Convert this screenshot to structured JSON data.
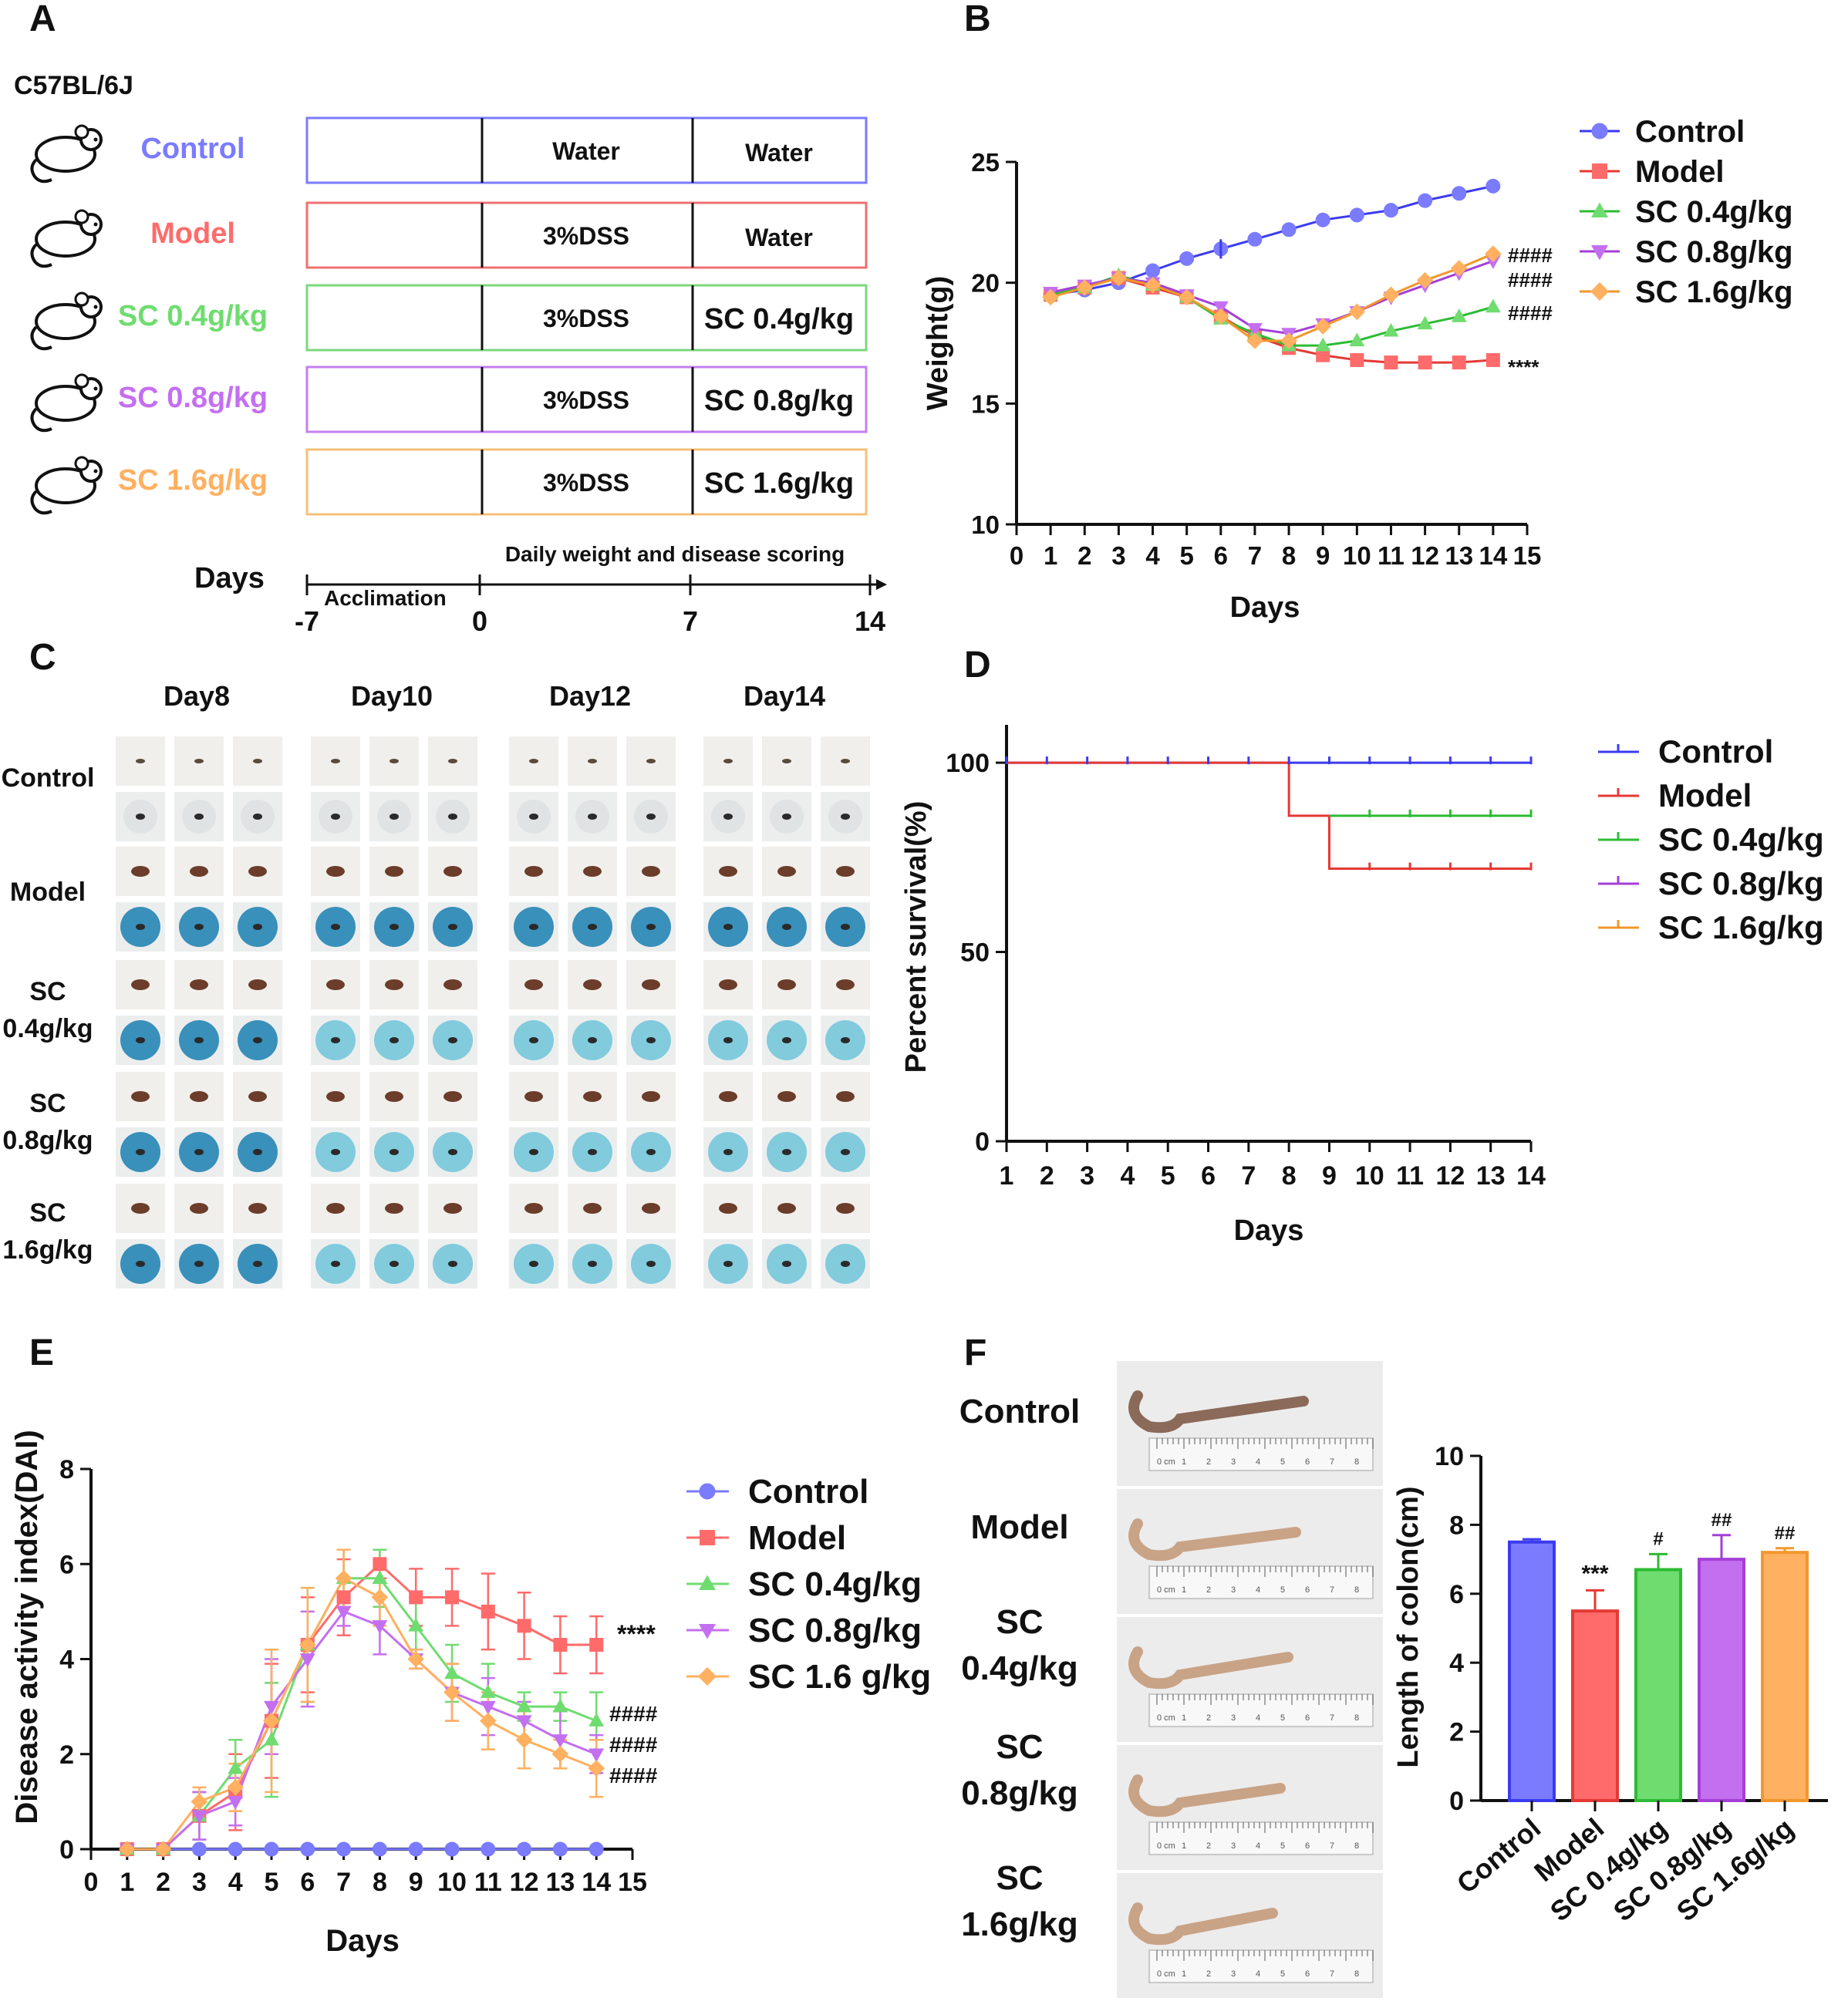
{
  "colors": {
    "control": "#3b3bf0",
    "model": "#e53935",
    "sc04": "#2dbb34",
    "sc08": "#a43fd6",
    "sc16": "#f2972c",
    "control_light": "#7b7bff",
    "model_light": "#ff6b6b",
    "sc04_light": "#6fdc6f",
    "sc08_light": "#c46ff0",
    "sc16_light": "#ffb060"
  },
  "panel_letters": [
    "A",
    "B",
    "C",
    "D",
    "E",
    "F"
  ],
  "panelA": {
    "strain": "C57BL/6J",
    "groups": [
      {
        "label": "Control",
        "mid": "Water",
        "right": "Water"
      },
      {
        "label": "Model",
        "mid": "3%DSS",
        "right": "Water"
      },
      {
        "label": "SC 0.4g/kg",
        "mid": "3%DSS",
        "right": "SC 0.4g/kg"
      },
      {
        "label": "SC 0.8g/kg",
        "mid": "3%DSS",
        "right": "SC 0.8g/kg"
      },
      {
        "label": "SC 1.6g/kg",
        "mid": "3%DSS",
        "right": "SC 1.6g/kg"
      }
    ],
    "days_label": "Days",
    "acclimation": "Acclimation",
    "scoring": "Daily weight and disease scoring",
    "ticks": [
      "-7",
      "0",
      "7",
      "14"
    ]
  },
  "chart_data": [
    {
      "id": "B",
      "type": "line",
      "title": "",
      "xlabel": "Days",
      "ylabel": "Weight(g)",
      "xlim": [
        0,
        15
      ],
      "ylim": [
        10,
        25
      ],
      "xticks": [
        "0",
        "1",
        "2",
        "3",
        "4",
        "5",
        "6",
        "7",
        "8",
        "9",
        "10",
        "11",
        "12",
        "13",
        "14",
        "15"
      ],
      "yticks": [
        "10",
        "15",
        "20",
        "25"
      ],
      "x": [
        1,
        2,
        3,
        4,
        5,
        6,
        7,
        8,
        9,
        10,
        11,
        12,
        13,
        14
      ],
      "series": [
        {
          "name": "Control",
          "values": [
            19.5,
            19.7,
            20.0,
            20.5,
            21.0,
            21.4,
            21.8,
            22.2,
            22.6,
            22.8,
            23.0,
            23.4,
            23.7,
            24.0
          ]
        },
        {
          "name": "Model",
          "values": [
            19.5,
            19.8,
            20.2,
            19.8,
            19.4,
            18.6,
            17.8,
            17.3,
            17.0,
            16.8,
            16.7,
            16.7,
            16.7,
            16.8
          ]
        },
        {
          "name": "SC 0.4g/kg",
          "values": [
            19.5,
            19.8,
            20.3,
            19.9,
            19.4,
            18.5,
            17.9,
            17.4,
            17.4,
            17.6,
            18.0,
            18.3,
            18.6,
            19.0
          ]
        },
        {
          "name": "SC 0.8g/kg",
          "values": [
            19.6,
            19.9,
            20.2,
            20.0,
            19.5,
            19.0,
            18.1,
            17.9,
            18.3,
            18.8,
            19.4,
            19.9,
            20.4,
            20.9
          ]
        },
        {
          "name": "SC 1.6g/kg",
          "values": [
            19.4,
            19.8,
            20.2,
            19.9,
            19.4,
            18.6,
            17.6,
            17.6,
            18.2,
            18.8,
            19.5,
            20.1,
            20.6,
            21.2
          ]
        }
      ],
      "annotations": [
        "####",
        "####",
        "####",
        "****"
      ],
      "legend": "right"
    },
    {
      "id": "D",
      "type": "line",
      "title": "",
      "xlabel": "Days",
      "ylabel": "Percent survival(%)",
      "xlim": [
        1,
        14
      ],
      "ylim": [
        0,
        110
      ],
      "xticks": [
        "1",
        "2",
        "3",
        "4",
        "5",
        "6",
        "7",
        "8",
        "9",
        "10",
        "11",
        "12",
        "13",
        "14"
      ],
      "yticks": [
        "0",
        "50",
        "100"
      ],
      "series": [
        {
          "name": "Control",
          "steps": [
            [
              1,
              100
            ],
            [
              14,
              100
            ]
          ]
        },
        {
          "name": "Model",
          "steps": [
            [
              1,
              100
            ],
            [
              8,
              100
            ],
            [
              8,
              86
            ],
            [
              9,
              86
            ],
            [
              9,
              72
            ],
            [
              14,
              72
            ]
          ]
        },
        {
          "name": "SC 0.4g/kg",
          "steps": [
            [
              9,
              86
            ],
            [
              14,
              86
            ]
          ]
        },
        {
          "name": "SC 0.8g/kg",
          "steps": []
        },
        {
          "name": "SC 1.6g/kg",
          "steps": []
        }
      ],
      "legend": "right"
    },
    {
      "id": "E",
      "type": "line",
      "title": "",
      "xlabel": "Days",
      "ylabel": "Disease activity index(DAI)",
      "xlim": [
        0,
        15
      ],
      "ylim": [
        0,
        8
      ],
      "xticks": [
        "0",
        "1",
        "2",
        "3",
        "4",
        "5",
        "6",
        "7",
        "8",
        "9",
        "10",
        "11",
        "12",
        "13",
        "14",
        "15"
      ],
      "yticks": [
        "0",
        "2",
        "4",
        "6",
        "8"
      ],
      "x": [
        1,
        2,
        3,
        4,
        5,
        6,
        7,
        8,
        9,
        10,
        11,
        12,
        13,
        14
      ],
      "series": [
        {
          "name": "Control",
          "values": [
            0,
            0,
            0,
            0,
            0,
            0,
            0,
            0,
            0,
            0,
            0,
            0,
            0,
            0
          ],
          "err": [
            0,
            0,
            0,
            0,
            0,
            0,
            0,
            0,
            0,
            0,
            0,
            0,
            0,
            0
          ]
        },
        {
          "name": "Model",
          "values": [
            0,
            0,
            0.7,
            1.2,
            2.7,
            4.3,
            5.3,
            6.0,
            5.3,
            5.3,
            5.0,
            4.7,
            4.3,
            4.3
          ],
          "err": [
            0,
            0,
            0.5,
            0.8,
            1.2,
            1.0,
            0.8,
            0.3,
            0.6,
            0.6,
            0.8,
            0.7,
            0.6,
            0.6
          ]
        },
        {
          "name": "SC 0.4g/kg",
          "values": [
            0,
            0,
            0.7,
            1.7,
            2.3,
            4.3,
            5.7,
            5.7,
            4.7,
            3.7,
            3.3,
            3.0,
            3.0,
            2.7
          ],
          "err": [
            0,
            0,
            0.5,
            0.6,
            1.2,
            1.2,
            0.6,
            0.6,
            0.6,
            0.6,
            0.6,
            0.3,
            0.3,
            0.6
          ]
        },
        {
          "name": "SC 0.8g/kg",
          "values": [
            0,
            0,
            0.7,
            1.0,
            3.0,
            4.0,
            5.0,
            4.7,
            4.0,
            3.3,
            3.0,
            2.7,
            2.3,
            2.0
          ],
          "err": [
            0,
            0,
            0.5,
            0.5,
            1.0,
            1.0,
            0.3,
            0.6,
            0.2,
            0.6,
            0.6,
            0.4,
            0.6,
            0.4
          ]
        },
        {
          "name": "SC 1.6 g/kg",
          "values": [
            0,
            0,
            1.0,
            1.3,
            2.7,
            4.3,
            5.7,
            5.3,
            4.0,
            3.3,
            2.7,
            2.3,
            2.0,
            1.7
          ],
          "err": [
            0,
            0,
            0.3,
            0.5,
            1.5,
            1.2,
            0.6,
            0.6,
            0.2,
            0.6,
            0.6,
            0.6,
            0.3,
            0.6
          ]
        }
      ],
      "annotations": [
        "****",
        "####",
        "####",
        "####"
      ],
      "legend": "right"
    },
    {
      "id": "F",
      "type": "bar",
      "title": "",
      "xlabel": "",
      "ylabel": "Length of colon(cm)",
      "ylim": [
        0,
        10
      ],
      "yticks": [
        "0",
        "2",
        "4",
        "6",
        "8",
        "10"
      ],
      "categories": [
        "Control",
        "Model",
        "SC 0.4g/kg",
        "SC 0.8g/kg",
        "SC 1.6g/kg"
      ],
      "values": [
        7.5,
        5.5,
        6.7,
        7.0,
        7.2
      ],
      "err": [
        0.08,
        0.6,
        0.45,
        0.7,
        0.12
      ],
      "annotations": [
        "",
        "***",
        "#",
        "##",
        "##"
      ]
    }
  ],
  "panelC": {
    "days": [
      "Day8",
      "Day10",
      "Day12",
      "Day14"
    ],
    "rows": [
      "Control",
      "Model",
      "SC\n0.4g/kg",
      "SC\n0.8g/kg",
      "SC\n1.6g/kg"
    ],
    "row_lines": [
      [
        "Control"
      ],
      [
        "Model"
      ],
      [
        "SC",
        "0.4g/kg"
      ],
      [
        "SC",
        "0.8g/kg"
      ],
      [
        "SC",
        "1.6g/kg"
      ]
    ]
  },
  "panelF": {
    "rows": [
      [
        "Control"
      ],
      [
        "Model"
      ],
      [
        "SC",
        "0.4g/kg"
      ],
      [
        "SC",
        "0.8g/kg"
      ],
      [
        "SC",
        "1.6g/kg"
      ]
    ],
    "ruler_labels": [
      "0 cm",
      "1",
      "2",
      "3",
      "4",
      "5",
      "6",
      "7",
      "8"
    ]
  }
}
